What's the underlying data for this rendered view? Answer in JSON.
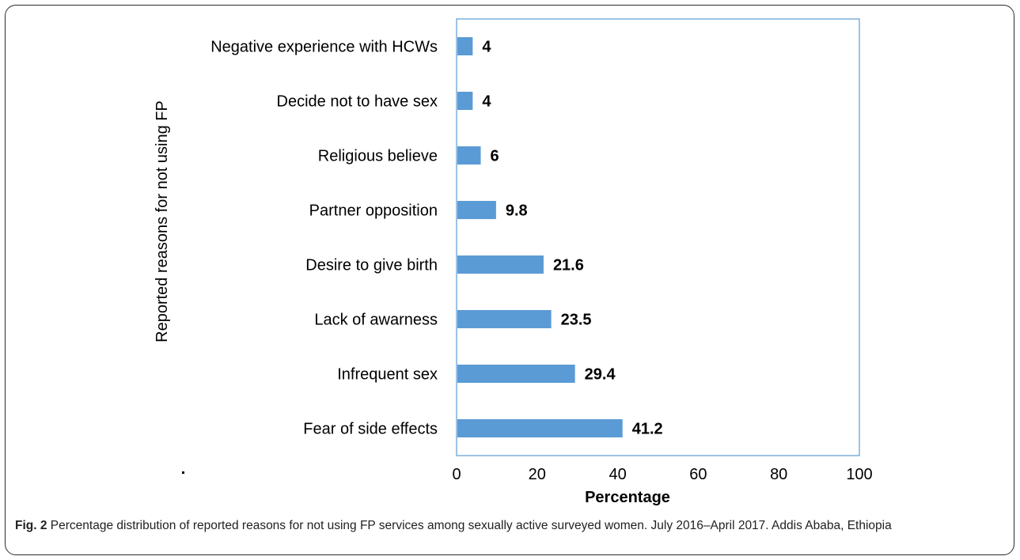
{
  "chart_data": {
    "type": "bar",
    "orientation": "horizontal",
    "categories": [
      "Negative experience with HCWs",
      "Decide not to have sex",
      "Religious believe",
      "Partner opposition",
      "Desire to give birth",
      "Lack of awarness",
      "Infrequent sex",
      "Fear  of side effects"
    ],
    "values": [
      4,
      4,
      6,
      9.8,
      21.6,
      23.5,
      29.4,
      41.2
    ],
    "data_labels": [
      "4",
      "4",
      "6",
      "9.8",
      "21.6",
      "23.5",
      "29.4",
      "41.2"
    ],
    "xlabel": "Percentage",
    "ylabel": "Reported reasons for not using FP",
    "xlim": [
      0,
      100
    ],
    "xticks": [
      "0",
      "20",
      "40",
      "60",
      "80",
      "100"
    ],
    "grid": false,
    "bar_color": "#5b9bd5",
    "plot_border_color": "#5b9bd5"
  },
  "caption": {
    "label": "Fig. 2",
    "text": " Percentage distribution of reported reasons for not using FP services among sexually active surveyed women. July 2016–April 2017. Addis Ababa, Ethiopia"
  }
}
